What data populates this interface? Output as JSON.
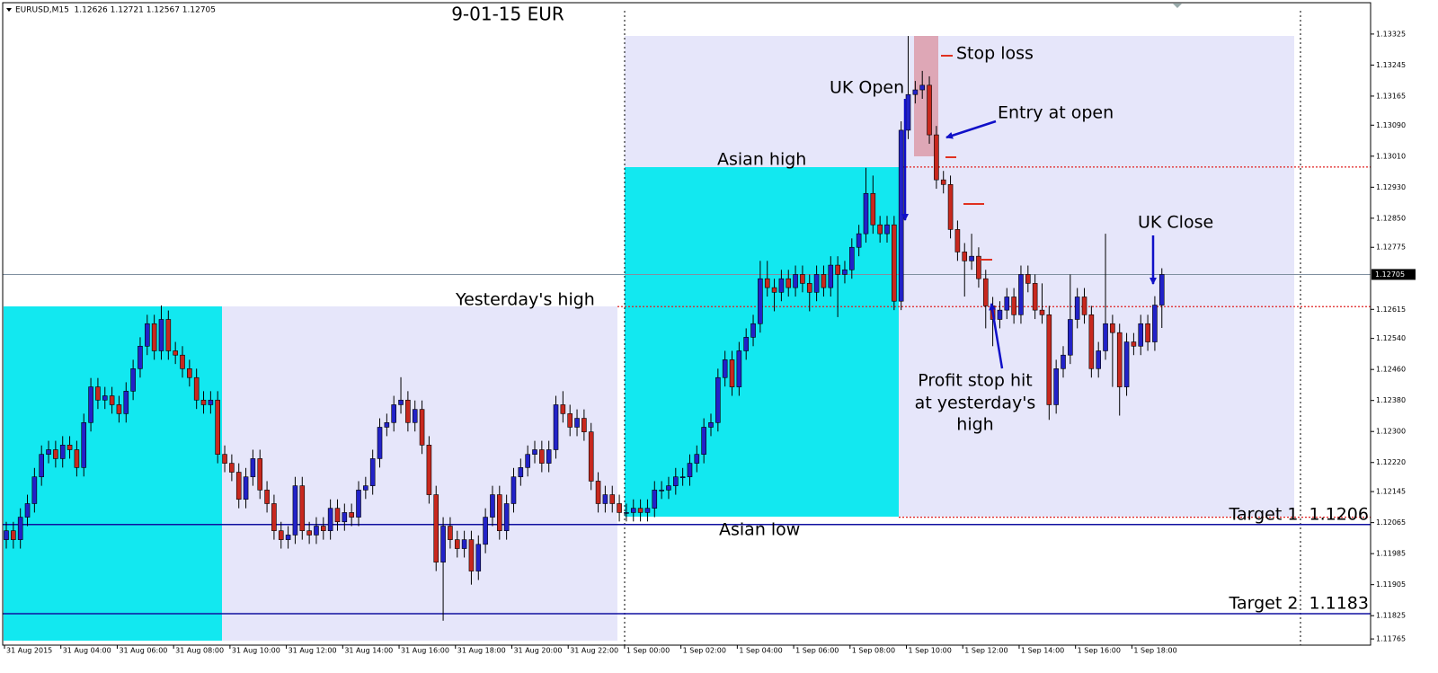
{
  "chart_data": {
    "type": "candlestick",
    "header": "EURUSD,M15  1.12626 1.12721 1.12567 1.12705",
    "title": "9-01-15  EUR",
    "up_color": "#2222c8",
    "down_color": "#c8281e",
    "open": [
      1.12021,
      1.12044,
      1.12021,
      1.12079,
      1.12114,
      1.12183,
      1.12241,
      1.12253,
      1.1223,
      1.12265,
      1.12253,
      1.12207,
      1.12323,
      1.12415,
      1.12381,
      1.12392,
      1.12369,
      1.12346,
      1.12404,
      1.12462,
      1.1252,
      1.12578,
      1.12508,
      1.12589,
      1.12508,
      1.12497,
      1.12462,
      1.12439,
      1.12381,
      1.12369,
      1.12381,
      1.12241,
      1.12218,
      1.12195,
      1.12125,
      1.12183,
      1.1223,
      1.12149,
      1.12114,
      1.12044,
      1.12021,
      1.12033,
      1.1216,
      1.12044,
      1.12033,
      1.12056,
      1.12044,
      1.12102,
      1.12067,
      1.12091,
      1.12079,
      1.12149,
      1.1216,
      1.1223,
      1.12311,
      1.12323,
      1.12369,
      1.12381,
      1.12323,
      1.12357,
      1.12265,
      1.12137,
      1.11963,
      1.12056,
      1.12021,
      1.11998,
      1.12021,
      1.1194,
      1.12009,
      1.12079,
      1.12137,
      1.12044,
      1.12114,
      1.12183,
      1.12207,
      1.12241,
      1.12253,
      1.12218,
      1.12253,
      1.12369,
      1.12346,
      1.12311,
      1.12334,
      1.12299,
      1.12172,
      1.12114,
      1.12137,
      1.12114,
      1.12091,
      1.12091,
      1.12102,
      1.12091,
      1.12102,
      1.12149,
      1.12149,
      1.1216,
      1.12183,
      1.12183,
      1.12218,
      1.12241,
      1.12311,
      1.12323,
      1.12439,
      1.12485,
      1.12415,
      1.12508,
      1.12543,
      1.12578,
      1.12694,
      1.12671,
      1.12659,
      1.12694,
      1.12671,
      1.12705,
      1.12682,
      1.12659,
      1.12705,
      1.12671,
      1.12729,
      1.12705,
      1.12717,
      1.12775,
      1.1281,
      1.12914,
      1.12833,
      1.1281,
      1.12833,
      1.12636,
      1.13077,
      1.13169,
      1.13181,
      1.13193,
      1.13065,
      1.12949,
      1.12937,
      1.12821,
      1.12763,
      1.1274,
      1.12752,
      1.12694,
      1.12624,
      1.12589,
      1.12613,
      1.12647,
      1.12601,
      1.12705,
      1.12682,
      1.12613,
      1.12601,
      1.12369,
      1.12462,
      1.12497,
      1.12589,
      1.12647,
      1.12601,
      1.12462,
      1.12508,
      1.12578,
      1.12555,
      1.12415,
      1.12531,
      1.1252,
      1.12578,
      1.12531,
      1.12626
    ],
    "high": [
      1.12067,
      1.12067,
      1.12102,
      1.12137,
      1.12206,
      1.12264,
      1.12276,
      1.12276,
      1.12288,
      1.12288,
      1.12276,
      1.12346,
      1.12438,
      1.12438,
      1.12415,
      1.12415,
      1.12392,
      1.12427,
      1.12485,
      1.12543,
      1.12601,
      1.12601,
      1.12625,
      1.12612,
      1.12531,
      1.1252,
      1.12485,
      1.12462,
      1.12404,
      1.12404,
      1.12404,
      1.12264,
      1.12241,
      1.12218,
      1.12206,
      1.12253,
      1.12253,
      1.12172,
      1.12137,
      1.12067,
      1.12056,
      1.12183,
      1.12183,
      1.12067,
      1.12079,
      1.12079,
      1.12125,
      1.12125,
      1.12114,
      1.12114,
      1.12172,
      1.12183,
      1.12253,
      1.12334,
      1.12346,
      1.12392,
      1.1244,
      1.12404,
      1.1238,
      1.1238,
      1.12288,
      1.1216,
      1.12079,
      1.12079,
      1.12044,
      1.12044,
      1.12044,
      1.12032,
      1.12102,
      1.1216,
      1.1216,
      1.12137,
      1.12206,
      1.1223,
      1.12264,
      1.12276,
      1.12276,
      1.12276,
      1.12392,
      1.12404,
      1.12369,
      1.12357,
      1.12357,
      1.12322,
      1.12195,
      1.1216,
      1.1216,
      1.12137,
      1.12114,
      1.12125,
      1.12125,
      1.12125,
      1.12172,
      1.12172,
      1.12183,
      1.12206,
      1.12206,
      1.12241,
      1.12264,
      1.12334,
      1.12346,
      1.12462,
      1.12508,
      1.12508,
      1.12531,
      1.12566,
      1.12601,
      1.1274,
      1.1274,
      1.12694,
      1.12717,
      1.12717,
      1.12728,
      1.12728,
      1.12705,
      1.12728,
      1.12728,
      1.12752,
      1.12752,
      1.1274,
      1.12798,
      1.12833,
      1.1298,
      1.1296,
      1.12856,
      1.12856,
      1.12856,
      1.131,
      1.1332,
      1.13204,
      1.1323,
      1.13216,
      1.13088,
      1.12972,
      1.1296,
      1.12844,
      1.12786,
      1.1281,
      1.12775,
      1.12717,
      1.12647,
      1.12636,
      1.1267,
      1.1267,
      1.12728,
      1.12728,
      1.12705,
      1.12682,
      1.12624,
      1.12485,
      1.1252,
      1.12705,
      1.1267,
      1.1267,
      1.12624,
      1.12531,
      1.1281,
      1.12601,
      1.12578,
      1.12554,
      1.12554,
      1.12601,
      1.12601,
      1.12649,
      1.12721
    ],
    "low": [
      1.11998,
      1.11998,
      1.11998,
      1.12056,
      1.12091,
      1.1216,
      1.12218,
      1.12207,
      1.12207,
      1.1223,
      1.12184,
      1.12184,
      1.123,
      1.12358,
      1.12358,
      1.12346,
      1.12323,
      1.12323,
      1.12381,
      1.12439,
      1.12497,
      1.12485,
      1.12485,
      1.12485,
      1.12474,
      1.12439,
      1.12416,
      1.12358,
      1.12346,
      1.12346,
      1.12218,
      1.12195,
      1.12172,
      1.12102,
      1.12102,
      1.1216,
      1.12126,
      1.12091,
      1.12021,
      1.11998,
      1.11998,
      1.1201,
      1.12021,
      1.1201,
      1.1201,
      1.12021,
      1.12021,
      1.12044,
      1.12044,
      1.12056,
      1.12056,
      1.12126,
      1.12137,
      1.12207,
      1.12288,
      1.123,
      1.12346,
      1.123,
      1.123,
      1.12242,
      1.12114,
      1.1194,
      1.11812,
      1.11998,
      1.11975,
      1.11975,
      1.11905,
      1.11917,
      1.11986,
      1.12056,
      1.12021,
      1.12021,
      1.12091,
      1.1216,
      1.12184,
      1.12218,
      1.12195,
      1.12195,
      1.1223,
      1.12323,
      1.12288,
      1.12288,
      1.12276,
      1.12149,
      1.12091,
      1.12091,
      1.12091,
      1.12068,
      1.12068,
      1.12068,
      1.12068,
      1.12068,
      1.12079,
      1.12126,
      1.12126,
      1.12137,
      1.1216,
      1.1216,
      1.12195,
      1.12218,
      1.12288,
      1.123,
      1.12416,
      1.12392,
      1.12392,
      1.12485,
      1.1252,
      1.12555,
      1.12648,
      1.1261,
      1.12636,
      1.12648,
      1.12648,
      1.12659,
      1.1261,
      1.12636,
      1.12648,
      1.12648,
      1.12595,
      1.12682,
      1.12694,
      1.12752,
      1.12787,
      1.1281,
      1.12787,
      1.12787,
      1.12613,
      1.12613,
      1.13054,
      1.13146,
      1.13158,
      1.13042,
      1.12926,
      1.12914,
      1.12798,
      1.1274,
      1.12648,
      1.12717,
      1.12671,
      1.12566,
      1.1252,
      1.12566,
      1.1259,
      1.12578,
      1.12578,
      1.12659,
      1.1259,
      1.12578,
      1.1233,
      1.12346,
      1.12439,
      1.12474,
      1.12566,
      1.12578,
      1.12439,
      1.12439,
      1.12485,
      1.12415,
      1.12341,
      1.12392,
      1.12497,
      1.12497,
      1.12508,
      1.12508,
      1.12567
    ],
    "close": [
      1.12044,
      1.12021,
      1.12079,
      1.12114,
      1.12183,
      1.12241,
      1.12253,
      1.1223,
      1.12265,
      1.12253,
      1.12207,
      1.12323,
      1.12415,
      1.12381,
      1.12392,
      1.12369,
      1.12346,
      1.12404,
      1.12462,
      1.1252,
      1.12578,
      1.12508,
      1.12589,
      1.12508,
      1.12497,
      1.12462,
      1.12439,
      1.12381,
      1.12369,
      1.12381,
      1.12241,
      1.12218,
      1.12195,
      1.12125,
      1.12183,
      1.1223,
      1.12149,
      1.12114,
      1.12044,
      1.12021,
      1.12033,
      1.1216,
      1.12044,
      1.12033,
      1.12056,
      1.12044,
      1.12102,
      1.12067,
      1.12091,
      1.12079,
      1.12149,
      1.1216,
      1.1223,
      1.12311,
      1.12323,
      1.12369,
      1.12381,
      1.12323,
      1.12357,
      1.12265,
      1.12137,
      1.11963,
      1.12056,
      1.12021,
      1.11998,
      1.12021,
      1.1194,
      1.12009,
      1.12079,
      1.12137,
      1.12044,
      1.12114,
      1.12183,
      1.12207,
      1.12241,
      1.12253,
      1.12218,
      1.12253,
      1.12369,
      1.12346,
      1.12311,
      1.12334,
      1.12299,
      1.12172,
      1.12114,
      1.12137,
      1.12114,
      1.12091,
      1.12091,
      1.12102,
      1.12091,
      1.12102,
      1.12149,
      1.12149,
      1.1216,
      1.12183,
      1.12183,
      1.12218,
      1.12241,
      1.12311,
      1.12323,
      1.12439,
      1.12485,
      1.12415,
      1.12508,
      1.12543,
      1.12578,
      1.12694,
      1.12671,
      1.12659,
      1.12694,
      1.12671,
      1.12705,
      1.12682,
      1.12659,
      1.12705,
      1.12671,
      1.12729,
      1.12705,
      1.12717,
      1.12775,
      1.1281,
      1.12914,
      1.12833,
      1.1281,
      1.12833,
      1.12636,
      1.13077,
      1.13169,
      1.13181,
      1.13193,
      1.13065,
      1.12949,
      1.12937,
      1.12821,
      1.12763,
      1.1274,
      1.12752,
      1.12694,
      1.12624,
      1.12589,
      1.12613,
      1.12647,
      1.12601,
      1.12705,
      1.12682,
      1.12613,
      1.12601,
      1.12369,
      1.12462,
      1.12497,
      1.12589,
      1.12647,
      1.12601,
      1.12462,
      1.12508,
      1.12578,
      1.12555,
      1.12415,
      1.12531,
      1.1252,
      1.12578,
      1.12531,
      1.12626,
      1.12705
    ],
    "ylim": [
      1.11749,
      1.13385
    ],
    "yticks": [
      1.13325,
      1.13245,
      1.13165,
      {
        "value": 1.1309,
        "label": "1.13090"
      },
      {
        "value": 1.1301,
        "label": "1.13010"
      },
      {
        "value": 1.1293,
        "label": "1.12930"
      },
      {
        "value": 1.1285,
        "label": "1.12850"
      },
      1.12775,
      1.12615,
      {
        "value": 1.1254,
        "label": "1.12540"
      },
      {
        "value": 1.1246,
        "label": "1.12460"
      },
      {
        "value": 1.1238,
        "label": "1.12380"
      },
      {
        "value": 1.123,
        "label": "1.12300"
      },
      {
        "value": 1.1222,
        "label": "1.12220"
      },
      1.12145,
      1.12065,
      1.11985,
      1.11905,
      1.11825,
      1.11765
    ],
    "xticks": [
      {
        "value": 0,
        "label": "31 Aug 2015"
      },
      {
        "value": 8,
        "label": "31 Aug 04:00"
      },
      {
        "value": 16,
        "label": "31 Aug 06:00"
      },
      {
        "value": 24,
        "label": "31 Aug 08:00"
      },
      {
        "value": 32,
        "label": "31 Aug 10:00"
      },
      {
        "value": 40,
        "label": "31 Aug 12:00"
      },
      {
        "value": 48,
        "label": "31 Aug 14:00"
      },
      {
        "value": 56,
        "label": "31 Aug 16:00"
      },
      {
        "value": 64,
        "label": "31 Aug 18:00"
      },
      {
        "value": 72,
        "label": "31 Aug 20:00"
      },
      {
        "value": 80,
        "label": "31 Aug 22:00"
      },
      {
        "value": 88,
        "label": "1 Sep 00:00"
      },
      {
        "value": 96,
        "label": "1 Sep 02:00"
      },
      {
        "value": 104,
        "label": "1 Sep 04:00"
      },
      {
        "value": 112,
        "label": "1 Sep 06:00"
      },
      {
        "value": 120,
        "label": "1 Sep 08:00"
      },
      {
        "value": 128,
        "label": "1 Sep 10:00"
      },
      {
        "value": 136,
        "label": "1 Sep 12:00"
      },
      {
        "value": 144,
        "label": "1 Sep 14:00"
      },
      {
        "value": 152,
        "label": "1 Sep 16:00"
      },
      {
        "value": 160,
        "label": "1 Sep 18:00"
      }
    ],
    "last_price": 1.12705,
    "reference_lines": [
      1.12982,
      1.12622,
      1.12079
    ],
    "targets": [
      {
        "value": 1.1206,
        "label": "Target 1  1.1206"
      },
      {
        "value": 1.1183,
        "label": "Target 2  1.1183"
      }
    ],
    "annotations": [
      "UK Open",
      "Stop loss",
      "Entry at open",
      "Asian high",
      "Yesterday's high",
      "Asian low",
      "UK Close",
      "Profit stop hit",
      "at yesterday's",
      "high"
    ]
  }
}
